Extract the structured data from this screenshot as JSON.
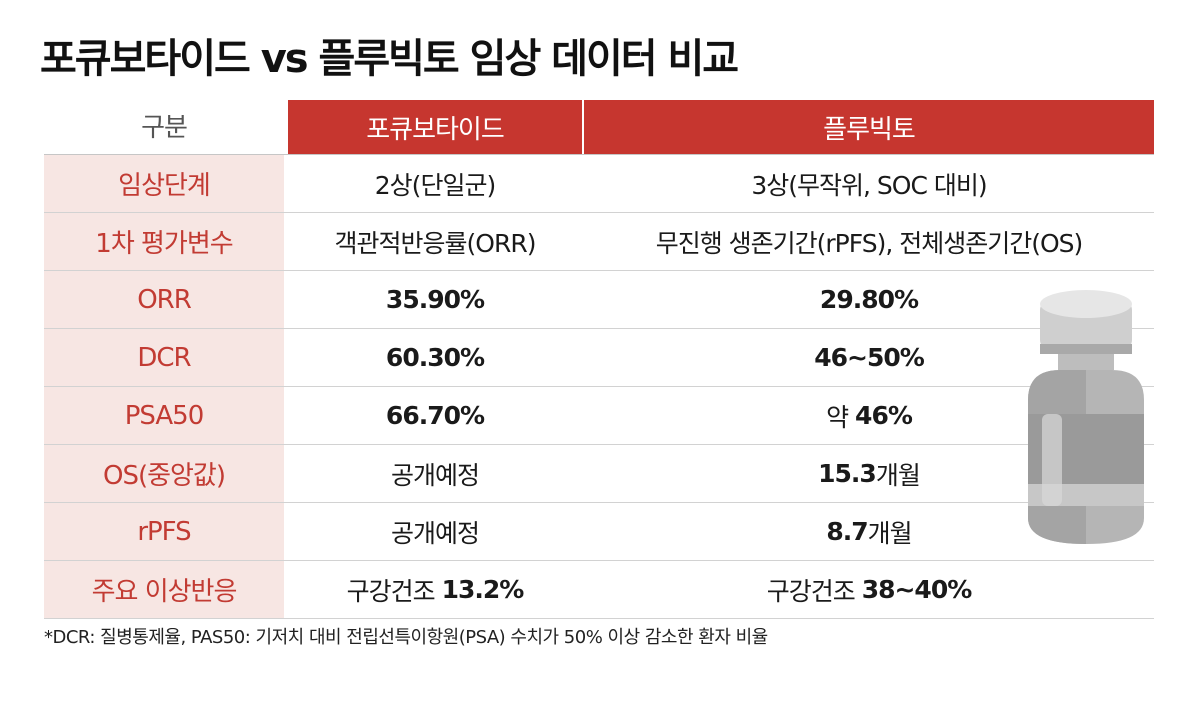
{
  "title": "포큐보타이드 vs 플루빅토 임상 데이터 비교",
  "table": {
    "headers": [
      "구분",
      "포큐보타이드",
      "플루빅토"
    ],
    "rows": [
      {
        "label": "임상단계",
        "a": [
          "2상(단일군)",
          ""
        ],
        "b": [
          "3상(무작위, SOC 대비)",
          ""
        ]
      },
      {
        "label": "1차 평가변수",
        "a": [
          "객관적반응률(ORR)",
          ""
        ],
        "b": [
          "무진행 생존기간(rPFS), 전체생존기간(OS)",
          ""
        ]
      },
      {
        "label": "ORR",
        "a": [
          "",
          "35.90%"
        ],
        "b": [
          "",
          "29.80%"
        ]
      },
      {
        "label": "DCR",
        "a": [
          "",
          "60.30%"
        ],
        "b": [
          "",
          "46~50%"
        ]
      },
      {
        "label": "PSA50",
        "a": [
          "",
          "66.70%"
        ],
        "b": [
          "약 ",
          "46%"
        ]
      },
      {
        "label": "OS(중앙값)",
        "a": [
          "공개예정",
          ""
        ],
        "b": [
          "",
          "15.3",
          "개월"
        ]
      },
      {
        "label": "rPFS",
        "a": [
          "공개예정",
          ""
        ],
        "b": [
          "",
          "8.7",
          "개월"
        ]
      },
      {
        "label": "주요 이상반응",
        "a": [
          "구강건조 ",
          "13.2%"
        ],
        "b": [
          "구강건조 ",
          "38~40%"
        ]
      }
    ]
  },
  "footnote": "*DCR: 질병통제율, PAS50: 기저치 대비 전립선특이항원(PSA) 수치가 50% 이상 감소한 환자 비율",
  "colors": {
    "accent": "#c6362f",
    "label_bg": "#f7e6e3",
    "label_text": "#c23b33"
  }
}
